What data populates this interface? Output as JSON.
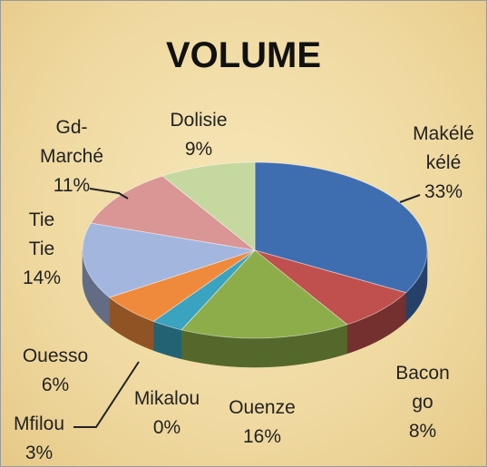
{
  "chart_data": {
    "type": "pie3d",
    "title": "VOLUME",
    "categories": [
      "Makélé kélé",
      "Bacongo",
      "Ouenze",
      "Mikalou",
      "Mfilou",
      "Ouesso",
      "Tie Tie",
      "Gd-Marché",
      "Dolisie"
    ],
    "values": [
      33,
      8,
      16,
      0,
      3,
      6,
      14,
      11,
      9
    ],
    "value_labels": [
      "33%",
      "8%",
      "16%",
      "0%",
      "3%",
      "6%",
      "14%",
      "11%",
      "9%"
    ],
    "colors": [
      "#3e6db0",
      "#c0504d",
      "#8cad4a",
      "#7c5fa0",
      "#3aa3bf",
      "#ef8a3c",
      "#a3b6de",
      "#d99694",
      "#c4d8a0"
    ]
  }
}
